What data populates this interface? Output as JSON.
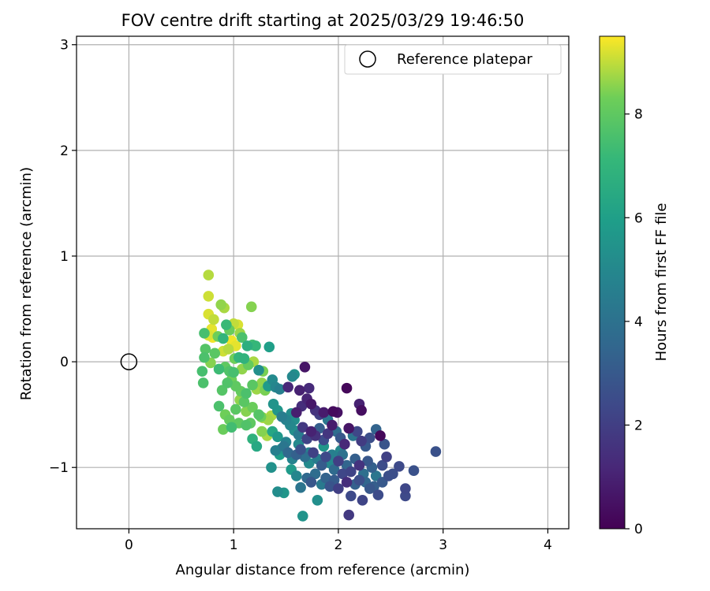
{
  "chart_data": {
    "type": "scatter",
    "title": "FOV centre drift starting at 2025/03/29 19:46:50",
    "xlabel": "Angular distance from reference (arcmin)",
    "ylabel": "Rotation from reference (arcmin)",
    "xlim": [
      -0.5,
      4.2
    ],
    "ylim": [
      -1.58,
      3.08
    ],
    "xticks": [
      0,
      1,
      2,
      3,
      4
    ],
    "yticks": [
      -1,
      0,
      1,
      2,
      3
    ],
    "xtick_labels": [
      "0",
      "1",
      "2",
      "3",
      "4"
    ],
    "ytick_labels": [
      "−1",
      "0",
      "1",
      "2",
      "3"
    ],
    "grid": true,
    "legend": {
      "placement": "top-right",
      "label": "Reference platepar"
    },
    "reference_point": {
      "x": 0,
      "y": 0
    },
    "colorbar": {
      "label": "Hours from first FF file",
      "colormap": "viridis",
      "range": [
        0,
        9.5
      ],
      "ticks": [
        0,
        2,
        4,
        6,
        8
      ],
      "tick_labels": [
        "0",
        "2",
        "4",
        "6",
        "8"
      ]
    },
    "points": [
      [
        0.76,
        0.82,
        8.9
      ],
      [
        0.76,
        0.62,
        9.1
      ],
      [
        0.88,
        0.54,
        8.6
      ],
      [
        0.91,
        0.51,
        8.8
      ],
      [
        1.17,
        0.52,
        8.5
      ],
      [
        0.76,
        0.45,
        9.2
      ],
      [
        0.81,
        0.4,
        9.0
      ],
      [
        0.72,
        0.27,
        7.5
      ],
      [
        0.79,
        0.31,
        9.3
      ],
      [
        0.76,
        0.25,
        9.2
      ],
      [
        0.8,
        0.23,
        9.4
      ],
      [
        0.85,
        0.24,
        8.3
      ],
      [
        0.9,
        0.22,
        7.0
      ],
      [
        0.93,
        0.35,
        7.2
      ],
      [
        0.96,
        0.3,
        8.2
      ],
      [
        1.0,
        0.36,
        9.0
      ],
      [
        1.04,
        0.35,
        9.2
      ],
      [
        1.06,
        0.27,
        8.7
      ],
      [
        1.08,
        0.23,
        7.6
      ],
      [
        0.98,
        0.2,
        9.4
      ],
      [
        1.02,
        0.15,
        9.3
      ],
      [
        0.95,
        0.12,
        8.9
      ],
      [
        0.9,
        0.1,
        9.1
      ],
      [
        1.01,
        0.03,
        8.3
      ],
      [
        1.05,
        0.04,
        7.0
      ],
      [
        1.1,
        0.03,
        6.9
      ],
      [
        1.13,
        0.15,
        6.7
      ],
      [
        1.18,
        0.16,
        7.4
      ],
      [
        1.21,
        0.15,
        7.1
      ],
      [
        1.34,
        0.14,
        6.0
      ],
      [
        0.73,
        0.12,
        7.8
      ],
      [
        0.72,
        0.04,
        7.6
      ],
      [
        0.78,
        -0.01,
        8.5
      ],
      [
        0.82,
        0.08,
        7.9
      ],
      [
        0.86,
        -0.07,
        7.3
      ],
      [
        0.92,
        -0.05,
        8.0
      ],
      [
        0.96,
        -0.09,
        7.7
      ],
      [
        1.0,
        -0.1,
        7.5
      ],
      [
        1.08,
        -0.07,
        8.6
      ],
      [
        1.14,
        -0.03,
        8.1
      ],
      [
        1.19,
        0.0,
        8.8
      ],
      [
        1.24,
        -0.08,
        5.3
      ],
      [
        1.28,
        -0.09,
        8.4
      ],
      [
        0.7,
        -0.09,
        7.5
      ],
      [
        0.71,
        -0.2,
        7.6
      ],
      [
        0.89,
        -0.27,
        7.8
      ],
      [
        0.94,
        -0.2,
        7.7
      ],
      [
        0.98,
        -0.17,
        8.3
      ],
      [
        1.02,
        -0.23,
        8.0
      ],
      [
        1.07,
        -0.28,
        8.1
      ],
      [
        1.12,
        -0.3,
        7.6
      ],
      [
        1.18,
        -0.22,
        7.9
      ],
      [
        1.22,
        -0.26,
        8.7
      ],
      [
        1.27,
        -0.2,
        8.6
      ],
      [
        1.3,
        -0.27,
        8.4
      ],
      [
        1.33,
        -0.23,
        5.8
      ],
      [
        1.37,
        -0.17,
        5.1
      ],
      [
        1.4,
        -0.24,
        4.9
      ],
      [
        1.44,
        -0.26,
        4.6
      ],
      [
        1.52,
        -0.24,
        1.2
      ],
      [
        1.56,
        -0.14,
        5.0
      ],
      [
        1.58,
        -0.12,
        5.4
      ],
      [
        1.68,
        -0.05,
        0.6
      ],
      [
        1.63,
        -0.27,
        1.0
      ],
      [
        1.72,
        -0.25,
        1.3
      ],
      [
        0.86,
        -0.42,
        7.6
      ],
      [
        0.92,
        -0.5,
        8.3
      ],
      [
        0.96,
        -0.55,
        8.1
      ],
      [
        1.02,
        -0.45,
        7.9
      ],
      [
        1.06,
        -0.36,
        8.6
      ],
      [
        1.12,
        -0.47,
        8.5
      ],
      [
        1.18,
        -0.43,
        8.2
      ],
      [
        1.24,
        -0.5,
        7.8
      ],
      [
        1.28,
        -0.53,
        8.9
      ],
      [
        1.33,
        -0.55,
        8.7
      ],
      [
        1.36,
        -0.51,
        8.8
      ],
      [
        1.42,
        -0.46,
        5.6
      ],
      [
        1.46,
        -0.52,
        4.5
      ],
      [
        1.5,
        -0.55,
        4.8
      ],
      [
        1.55,
        -0.49,
        5.2
      ],
      [
        1.6,
        -0.48,
        0.9
      ],
      [
        1.65,
        -0.42,
        1.4
      ],
      [
        1.7,
        -0.35,
        1.1
      ],
      [
        1.74,
        -0.4,
        0.7
      ],
      [
        1.78,
        -0.46,
        1.6
      ],
      [
        1.82,
        -0.5,
        2.0
      ],
      [
        1.86,
        -0.48,
        0.8
      ],
      [
        1.9,
        -0.55,
        4.3
      ],
      [
        1.95,
        -0.47,
        0.3
      ],
      [
        1.99,
        -0.48,
        0.5
      ],
      [
        2.08,
        -0.25,
        0.2
      ],
      [
        2.2,
        -0.4,
        1.0
      ],
      [
        2.22,
        -0.46,
        0.4
      ],
      [
        0.9,
        -0.64,
        8.2
      ],
      [
        0.98,
        -0.62,
        7.4
      ],
      [
        1.05,
        -0.58,
        8.0
      ],
      [
        1.12,
        -0.6,
        7.7
      ],
      [
        1.18,
        -0.73,
        6.8
      ],
      [
        1.22,
        -0.8,
        6.4
      ],
      [
        1.27,
        -0.66,
        8.5
      ],
      [
        1.32,
        -0.7,
        8.8
      ],
      [
        1.37,
        -0.66,
        6.3
      ],
      [
        1.42,
        -0.71,
        5.7
      ],
      [
        1.46,
        -0.82,
        5.5
      ],
      [
        1.5,
        -0.76,
        4.7
      ],
      [
        1.54,
        -0.6,
        5.0
      ],
      [
        1.58,
        -0.65,
        5.3
      ],
      [
        1.62,
        -0.69,
        4.4
      ],
      [
        1.66,
        -0.62,
        1.8
      ],
      [
        1.7,
        -0.73,
        2.2
      ],
      [
        1.74,
        -0.66,
        1.0
      ],
      [
        1.78,
        -0.7,
        1.5
      ],
      [
        1.82,
        -0.63,
        3.2
      ],
      [
        1.86,
        -0.74,
        2.5
      ],
      [
        1.9,
        -0.68,
        1.7
      ],
      [
        1.94,
        -0.6,
        0.8
      ],
      [
        1.98,
        -0.66,
        3.8
      ],
      [
        2.02,
        -0.72,
        2.9
      ],
      [
        2.06,
        -0.78,
        1.2
      ],
      [
        2.1,
        -0.63,
        0.6
      ],
      [
        2.14,
        -0.7,
        4.1
      ],
      [
        2.18,
        -0.66,
        2.3
      ],
      [
        2.22,
        -0.75,
        1.9
      ],
      [
        2.26,
        -0.8,
        3.0
      ],
      [
        2.3,
        -0.72,
        2.6
      ],
      [
        2.36,
        -0.64,
        3.4
      ],
      [
        2.4,
        -0.7,
        0.2
      ],
      [
        2.44,
        -0.78,
        2.8
      ],
      [
        1.4,
        -0.84,
        4.6
      ],
      [
        1.44,
        -0.88,
        5.9
      ],
      [
        1.48,
        -0.8,
        4.2
      ],
      [
        1.52,
        -0.86,
        3.6
      ],
      [
        1.56,
        -0.92,
        4.8
      ],
      [
        1.6,
        -0.88,
        3.3
      ],
      [
        1.64,
        -0.83,
        2.7
      ],
      [
        1.68,
        -0.9,
        3.9
      ],
      [
        1.72,
        -0.96,
        5.1
      ],
      [
        1.76,
        -0.86,
        2.1
      ],
      [
        1.8,
        -0.92,
        4.5
      ],
      [
        1.84,
        -0.98,
        3.1
      ],
      [
        1.88,
        -0.9,
        2.4
      ],
      [
        1.92,
        -0.96,
        5.0
      ],
      [
        1.96,
        -1.02,
        3.7
      ],
      [
        2.0,
        -0.94,
        2.0
      ],
      [
        2.04,
        -0.88,
        4.0
      ],
      [
        2.08,
        -0.98,
        3.5
      ],
      [
        2.12,
        -1.04,
        2.2
      ],
      [
        2.16,
        -0.92,
        3.2
      ],
      [
        2.2,
        -0.98,
        1.6
      ],
      [
        2.24,
        -1.06,
        3.9
      ],
      [
        2.28,
        -0.94,
        2.9
      ],
      [
        2.32,
        -1.0,
        3.3
      ],
      [
        2.36,
        -1.08,
        4.2
      ],
      [
        2.42,
        -0.98,
        2.5
      ],
      [
        2.46,
        -0.9,
        2.1
      ],
      [
        2.52,
        -1.06,
        2.6
      ],
      [
        2.58,
        -0.99,
        2.4
      ],
      [
        2.64,
        -1.2,
        2.3
      ],
      [
        2.64,
        -1.27,
        2.4
      ],
      [
        2.72,
        -1.03,
        2.7
      ],
      [
        2.93,
        -0.85,
        2.7
      ],
      [
        1.36,
        -1.0,
        5.4
      ],
      [
        1.42,
        -1.23,
        5.2
      ],
      [
        1.48,
        -1.24,
        5.6
      ],
      [
        1.55,
        -1.02,
        5.8
      ],
      [
        1.6,
        -1.08,
        4.9
      ],
      [
        1.64,
        -1.19,
        4.1
      ],
      [
        1.66,
        -1.46,
        5.5
      ],
      [
        1.7,
        -1.1,
        3.6
      ],
      [
        1.74,
        -1.14,
        2.9
      ],
      [
        1.78,
        -1.06,
        3.8
      ],
      [
        1.8,
        -1.31,
        5.3
      ],
      [
        1.84,
        -1.16,
        4.4
      ],
      [
        1.88,
        -1.1,
        3.4
      ],
      [
        1.92,
        -1.18,
        2.8
      ],
      [
        1.96,
        -1.12,
        3.1
      ],
      [
        2.0,
        -1.2,
        2.0
      ],
      [
        2.04,
        -1.06,
        2.3
      ],
      [
        2.08,
        -1.14,
        1.4
      ],
      [
        2.1,
        -1.45,
        1.8
      ],
      [
        2.12,
        -1.27,
        2.4
      ],
      [
        2.16,
        -1.16,
        3.3
      ],
      [
        2.2,
        -1.12,
        2.6
      ],
      [
        2.23,
        -1.31,
        2.2
      ],
      [
        2.26,
        -1.14,
        3.5
      ],
      [
        2.3,
        -1.2,
        2.9
      ],
      [
        2.34,
        -1.18,
        3.2
      ],
      [
        2.38,
        -1.26,
        2.5
      ],
      [
        2.42,
        -1.14,
        3.0
      ],
      [
        2.48,
        -1.08,
        2.6
      ],
      [
        1.26,
        -0.52,
        8.3
      ],
      [
        1.1,
        -0.38,
        7.9
      ],
      [
        1.16,
        -0.58,
        8.0
      ],
      [
        1.38,
        -0.4,
        5.5
      ],
      [
        1.58,
        -0.55,
        5.3
      ],
      [
        1.62,
        -0.78,
        5.1
      ],
      [
        1.86,
        -0.8,
        5.6
      ],
      [
        1.72,
        -0.86,
        4.7
      ],
      [
        2.02,
        -0.84,
        5.0
      ],
      [
        1.94,
        -0.88,
        4.6
      ]
    ]
  }
}
